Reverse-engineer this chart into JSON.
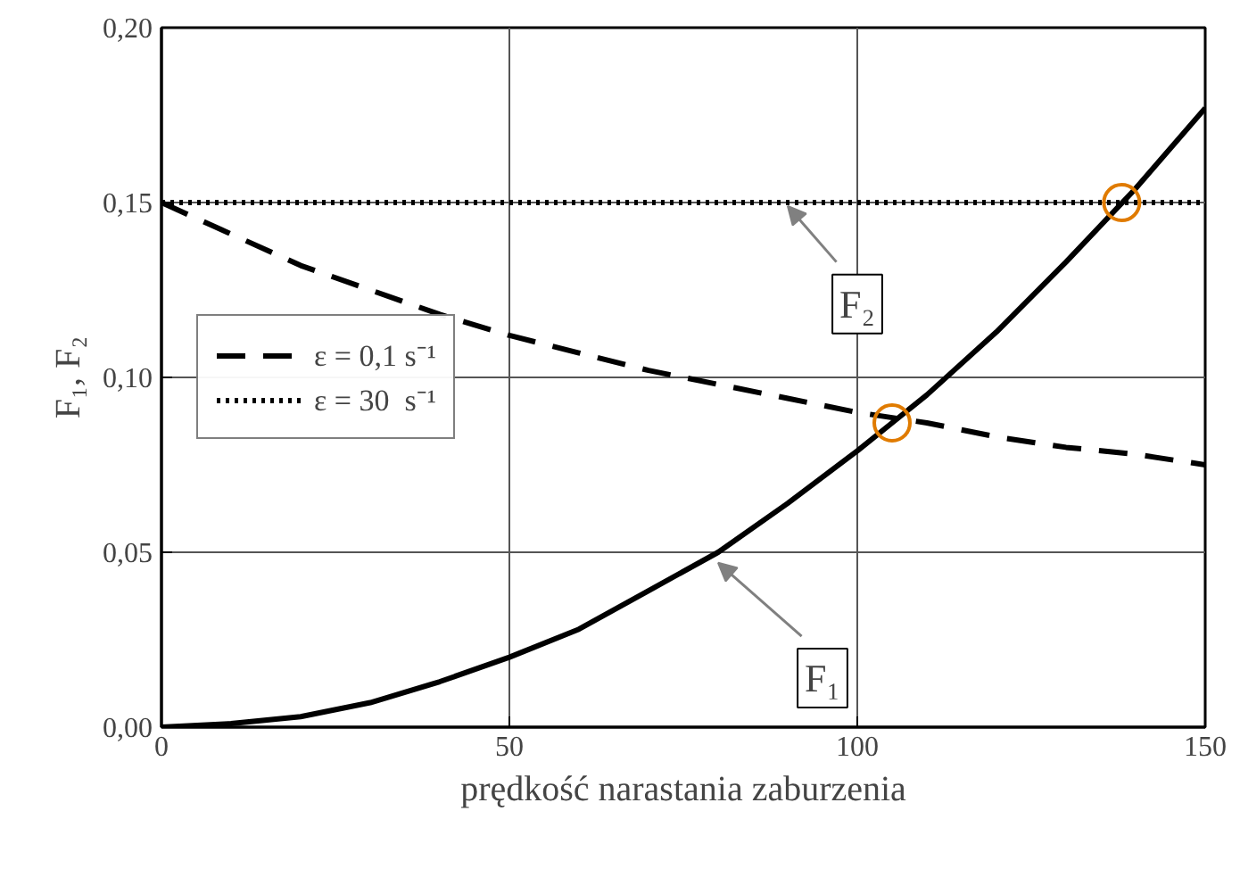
{
  "chart_data": {
    "type": "line",
    "xlabel": "prędkość narastania zaburzenia",
    "ylabel": "F₁, F₂",
    "xlim": [
      0,
      150
    ],
    "ylim": [
      0,
      0.2
    ],
    "xticks": [
      0,
      50,
      100,
      150
    ],
    "yticks": [
      {
        "value": 0,
        "label": "0,00"
      },
      {
        "value": 0.05,
        "label": "0,05"
      },
      {
        "value": 0.1,
        "label": "0,10"
      },
      {
        "value": 0.15,
        "label": "0,15"
      },
      {
        "value": 0.2,
        "label": "0,20"
      }
    ],
    "grid": true,
    "legend": "left",
    "series": [
      {
        "color": "#000000",
        "line_style": "solid",
        "x": [
          0,
          10,
          20,
          30,
          40,
          50,
          60,
          70,
          80,
          90,
          100,
          110,
          120,
          130,
          140,
          150
        ],
        "values": [
          0,
          0.001,
          0.003,
          0.007,
          0.013,
          0.02,
          0.028,
          0.039,
          0.05,
          0.064,
          0.079,
          0.095,
          0.113,
          0.133,
          0.154,
          0.177
        ]
      },
      {
        "name": "ε = 0,1 s⁻¹",
        "color": "#000000",
        "line_style": "dashed",
        "x": [
          0,
          10,
          20,
          30,
          40,
          50,
          60,
          70,
          80,
          90,
          100,
          110,
          120,
          130,
          140,
          150
        ],
        "values": [
          0.15,
          0.141,
          0.132,
          0.125,
          0.118,
          0.112,
          0.107,
          0.102,
          0.098,
          0.094,
          0.09,
          0.087,
          0.083,
          0.08,
          0.078,
          0.075
        ]
      },
      {
        "name": "ε = 30  s⁻¹",
        "color": "#000000",
        "line_style": "dotted",
        "x": [
          0,
          150
        ],
        "values": [
          0.15,
          0.15
        ]
      },
      {
        "type": "scatter",
        "marker": "circle",
        "color": "#e07b00",
        "x": [
          105,
          138
        ],
        "values": [
          0.087,
          0.15
        ]
      }
    ],
    "annotations": [
      {
        "text": "F₁",
        "x": 80,
        "y": 0.047
      },
      {
        "text": "F₂",
        "x": 90,
        "y": 0.149
      }
    ]
  }
}
